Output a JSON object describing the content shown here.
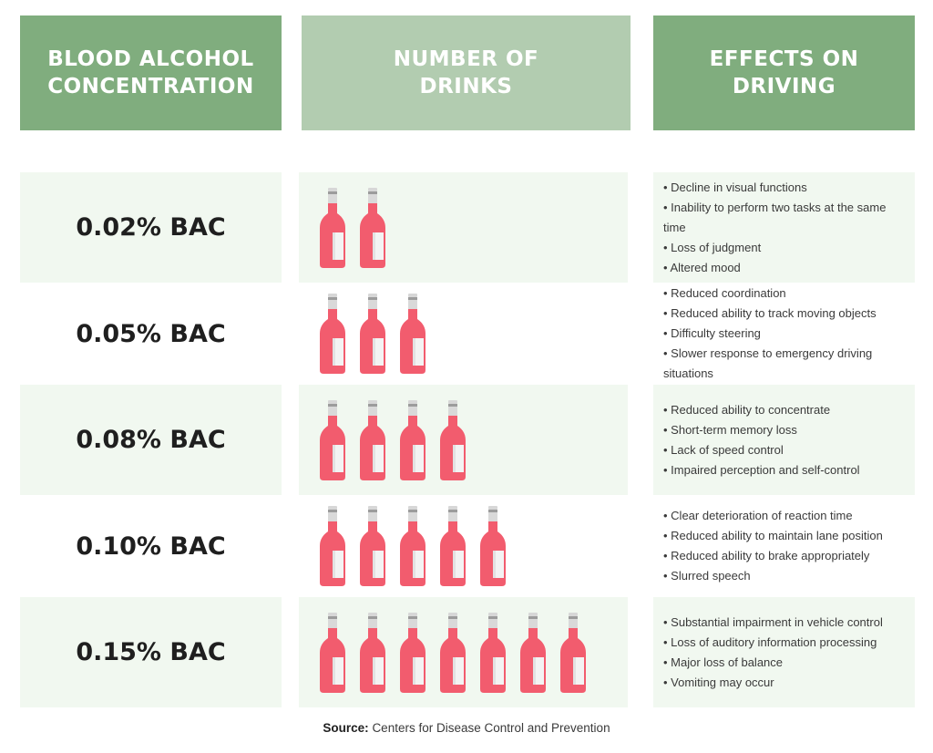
{
  "headers": {
    "bac": "BLOOD ALCOHOL\nCONCENTRATION",
    "drinks": "NUMBER OF\nDRINKS",
    "effects": "EFFECTS ON\nDRIVING"
  },
  "rows": [
    {
      "bac": "0.02% BAC",
      "drinks": 2,
      "effects": [
        "Decline in visual functions",
        "Inability to perform two tasks at the same time",
        "Loss of judgment",
        "Altered mood"
      ]
    },
    {
      "bac": "0.05% BAC",
      "drinks": 3,
      "effects": [
        "Reduced coordination",
        "Reduced ability to track moving objects",
        "Difficulty steering",
        "Slower response to emergency driving situations"
      ]
    },
    {
      "bac": "0.08% BAC",
      "drinks": 4,
      "effects": [
        "Reduced ability to concentrate",
        "Short-term memory loss",
        "Lack of speed control",
        "Impaired perception and self-control"
      ]
    },
    {
      "bac": "0.10% BAC",
      "drinks": 5,
      "effects": [
        "Clear deterioration of reaction time",
        "Reduced ability to maintain lane position",
        "Reduced ability to brake appropriately",
        "Slurred speech"
      ]
    },
    {
      "bac": "0.15% BAC",
      "drinks": 7,
      "effects": [
        "Substantial impairment in vehicle control",
        "Loss of auditory information processing",
        "Major loss of balance",
        "Vomiting may occur"
      ]
    }
  ],
  "source": {
    "label": "Source:",
    "text": "Centers for Disease Control and Prevention"
  },
  "icon": "wine-bottle-icon",
  "colors": {
    "header_dark": "#80ad7e",
    "header_light": "#b2ccb0",
    "row_shade": "#f1f8f0",
    "bottle": "#f25c6e"
  }
}
